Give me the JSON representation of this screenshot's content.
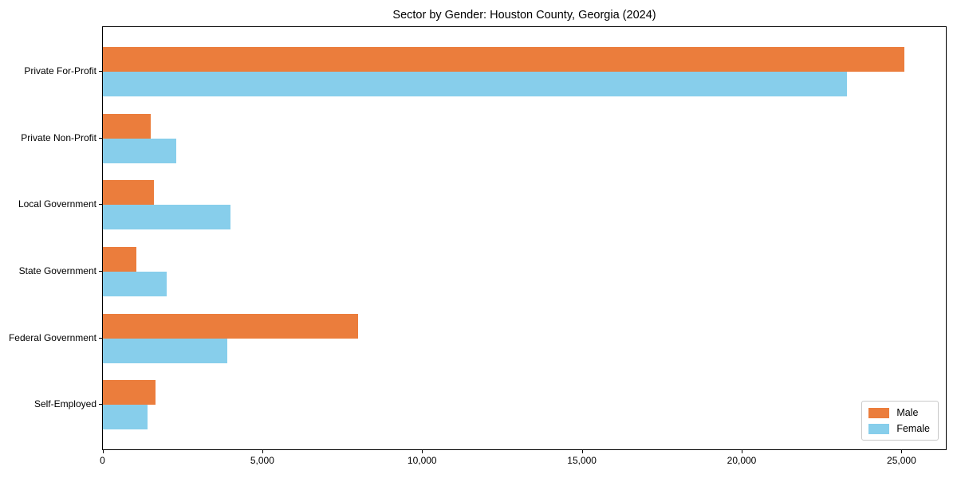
{
  "chart_data": {
    "type": "bar",
    "orientation": "horizontal",
    "title": "Sector by Gender: Houston County, Georgia (2024)",
    "xlabel": "",
    "ylabel": "",
    "categories": [
      "Private For-Profit",
      "Private Non-Profit",
      "Local Government",
      "State Government",
      "Federal Government",
      "Self-Employed"
    ],
    "series": [
      {
        "name": "Male",
        "color": "#EB7D3C",
        "values": [
          25100,
          1500,
          1600,
          1050,
          8000,
          1650
        ]
      },
      {
        "name": "Female",
        "color": "#87CEEB",
        "values": [
          23300,
          2300,
          4000,
          2000,
          3900,
          1400
        ]
      }
    ],
    "xlim": [
      0,
      26400
    ],
    "xticks": [
      0,
      5000,
      10000,
      15000,
      20000,
      25000
    ],
    "xtick_labels": [
      "0",
      "5,000",
      "10,000",
      "15,000",
      "20,000",
      "25,000"
    ],
    "grid": false,
    "legend_position": "lower right"
  }
}
